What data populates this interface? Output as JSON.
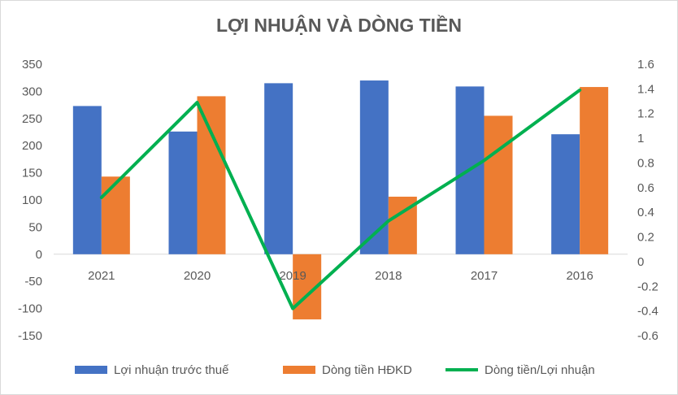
{
  "chart_data": {
    "type": "bar",
    "title": "LỢI NHUẬN VÀ DÒNG TIỀN",
    "categories": [
      "2021",
      "2020",
      "2019",
      "2018",
      "2017",
      "2016"
    ],
    "series": [
      {
        "name": "Lợi nhuận trước thuế",
        "type": "bar",
        "axis": "left",
        "color": "#4472C4",
        "values": [
          273,
          226,
          315,
          320,
          309,
          221
        ]
      },
      {
        "name": "Dòng tiền HĐKD",
        "type": "bar",
        "axis": "left",
        "color": "#ED7D31",
        "values": [
          143,
          291,
          -120,
          106,
          255,
          308
        ]
      },
      {
        "name": "Dòng tiền/Lợi nhuận",
        "type": "line",
        "axis": "right",
        "color": "#00B050",
        "values": [
          0.52,
          1.29,
          -0.38,
          0.33,
          0.82,
          1.39
        ]
      }
    ],
    "y_left": {
      "ylim": [
        -150,
        350
      ],
      "ticks": [
        "350",
        "300",
        "250",
        "200",
        "150",
        "100",
        "50",
        "0",
        "-50",
        "-100",
        "-150"
      ]
    },
    "y_right": {
      "ylim": [
        -0.6,
        1.6
      ],
      "ticks": [
        "1.6",
        "1.4",
        "1.2",
        "1",
        "0.8",
        "0.6",
        "0.4",
        "0.2",
        "0",
        "-0.2",
        "-0.4",
        "-0.6"
      ]
    },
    "grid": false,
    "legend_position": "bottom"
  }
}
